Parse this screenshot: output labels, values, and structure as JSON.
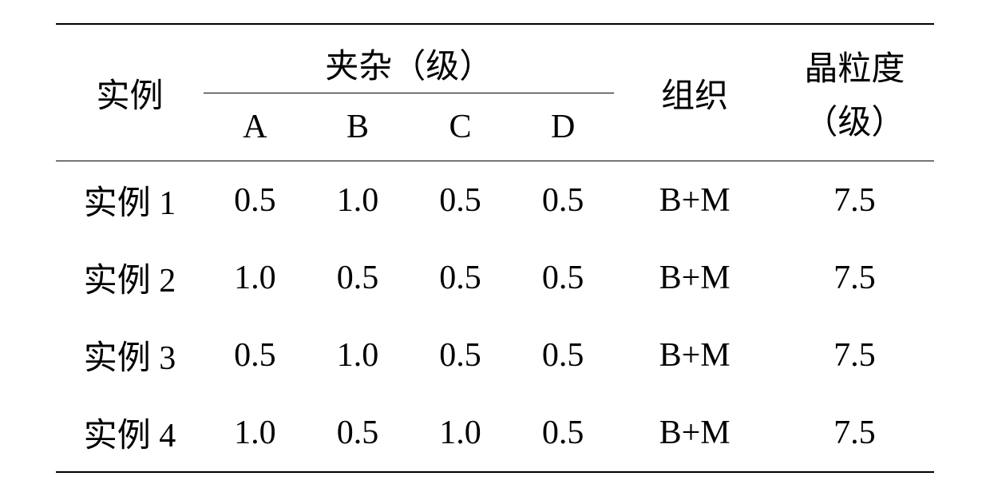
{
  "headers": {
    "example": "实例",
    "inclusion_group": "夹杂（级）",
    "org": "组织",
    "grain": "晶粒度",
    "grain_unit": "（级）",
    "A": "A",
    "B": "B",
    "C": "C",
    "D": "D"
  },
  "rows": [
    {
      "label_prefix": "实例",
      "label_num": "1",
      "A": "0.5",
      "B": "1.0",
      "C": "0.5",
      "D": "0.5",
      "org": "B+M",
      "grain": "7.5"
    },
    {
      "label_prefix": "实例",
      "label_num": "2",
      "A": "1.0",
      "B": "0.5",
      "C": "0.5",
      "D": "0.5",
      "org": "B+M",
      "grain": "7.5"
    },
    {
      "label_prefix": "实例",
      "label_num": "3",
      "A": "0.5",
      "B": "1.0",
      "C": "0.5",
      "D": "0.5",
      "org": "B+M",
      "grain": "7.5"
    },
    {
      "label_prefix": "实例",
      "label_num": "4",
      "A": "1.0",
      "B": "0.5",
      "C": "1.0",
      "D": "0.5",
      "org": "B+M",
      "grain": "7.5"
    }
  ],
  "style": {
    "font_size_pt": 42,
    "text_color": "#000000",
    "background_color": "#ffffff",
    "border_color": "#000000"
  }
}
